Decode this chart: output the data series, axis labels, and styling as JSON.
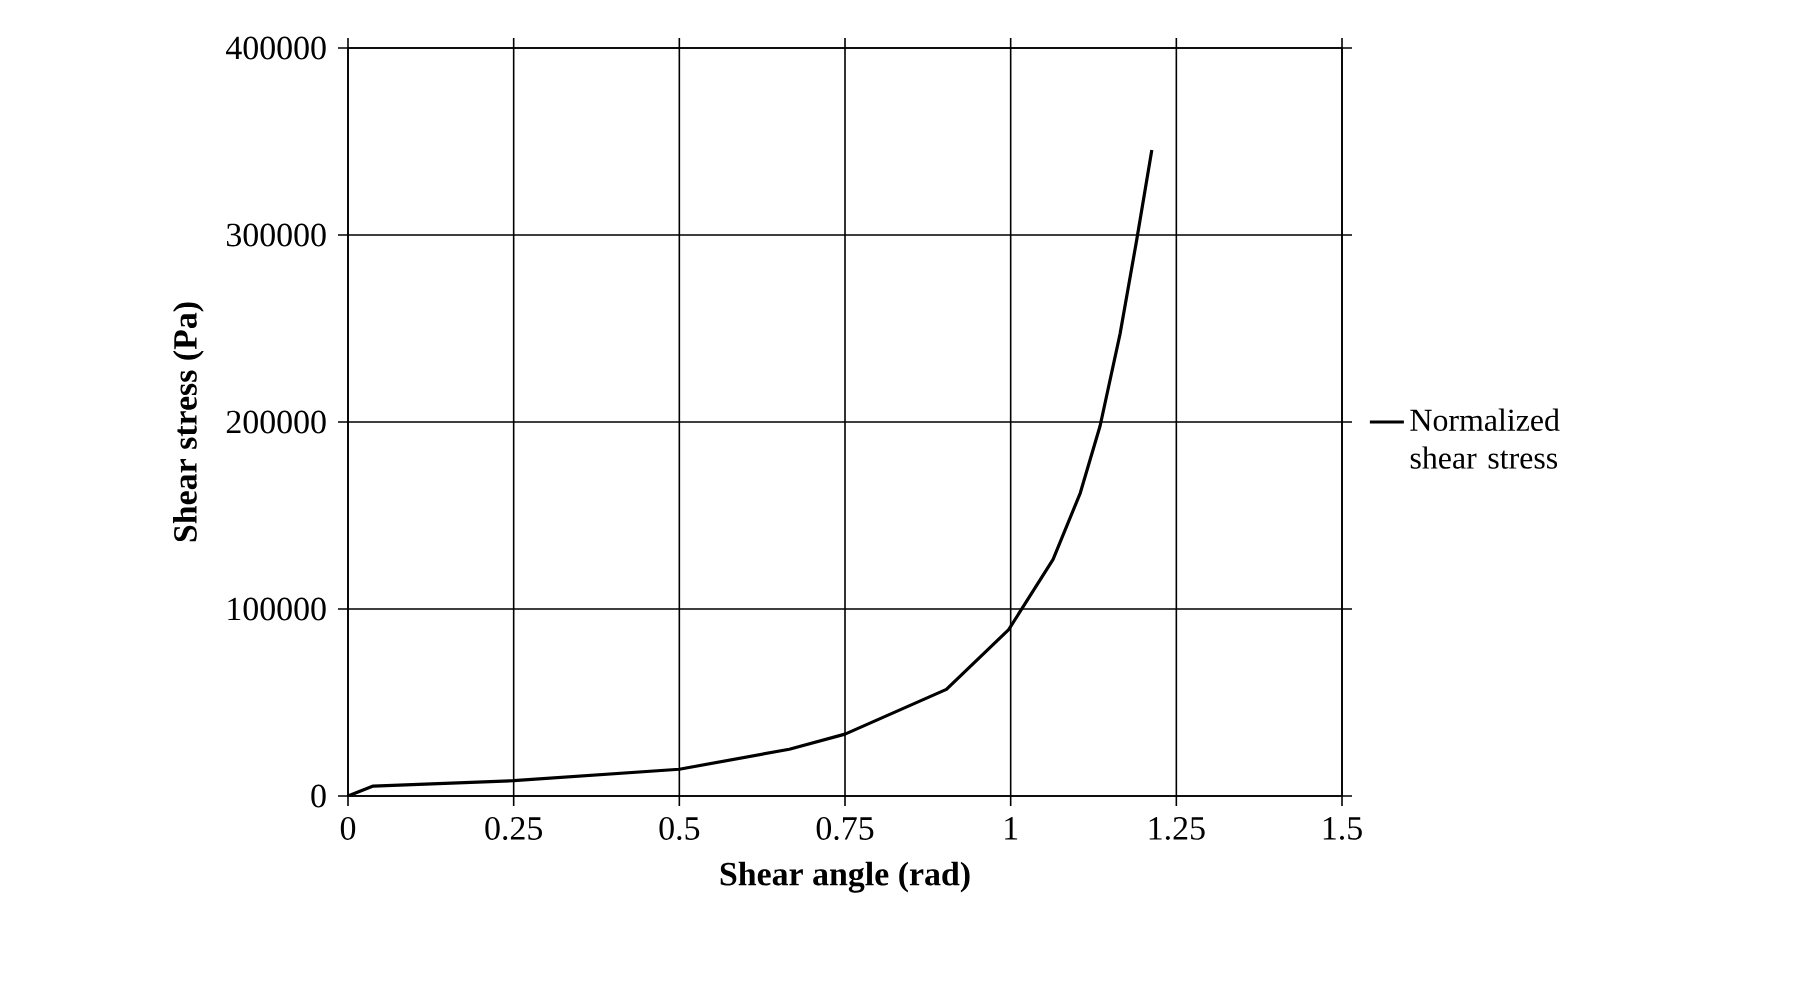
{
  "chart_data": {
    "type": "line",
    "xlabel": "Shear angle (rad)",
    "ylabel": "Shear stress (Pa)",
    "xlim": [
      0,
      1.5
    ],
    "xticks": [
      0,
      0.25,
      0.5,
      0.75,
      1,
      1.25,
      1.5
    ],
    "ylim": [
      0,
      400000
    ],
    "yticks": [
      0,
      100000,
      200000,
      300000,
      400000
    ],
    "grid": true,
    "legend": "right",
    "marker": "none",
    "line_style": "solid",
    "series": [
      {
        "name": "Normalized shear stress",
        "color": "#000000",
        "x": [
          0,
          0.038,
          0.25,
          0.5,
          0.666,
          0.75,
          0.903,
          0.997,
          1.064,
          1.105,
          1.135,
          1.165,
          1.19,
          1.213
        ],
        "values": [
          0,
          5300,
          8200,
          14300,
          25000,
          33100,
          57000,
          89000,
          126500,
          162000,
          198000,
          247000,
          297000,
          345500
        ]
      }
    ]
  }
}
